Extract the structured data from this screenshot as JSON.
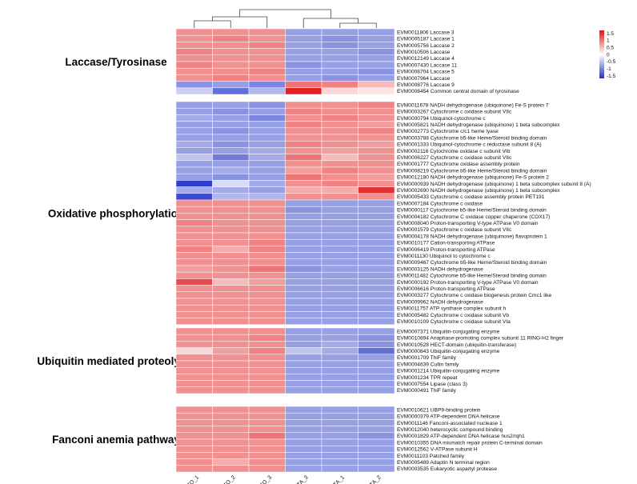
{
  "chart_data": {
    "type": "heatmap",
    "columns": [
      "TO_1",
      "TO_2",
      "TO_3",
      "TA_3",
      "TA_1",
      "TA_2"
    ],
    "colormap": {
      "low": "#2233c8",
      "mid": "#ffffff",
      "high": "#e01414"
    },
    "legend": {
      "ticks": [
        "1.5",
        "1",
        "0.5",
        "0",
        "-0.5",
        "-1",
        "-1.5"
      ],
      "range": [
        -1.7,
        1.7
      ]
    },
    "groups": [
      {
        "name": "Laccase/Tyrosinase",
        "rows": [
          {
            "label": "EVM0011806 Laccase 3",
            "values": [
              0.8,
              0.8,
              0.8,
              -0.8,
              -0.8,
              -0.8
            ]
          },
          {
            "label": "EVM0005187 Laccase 1",
            "values": [
              0.8,
              0.9,
              0.8,
              -0.8,
              -0.9,
              -0.8
            ]
          },
          {
            "label": "EVM0005756 Laccase 2",
            "values": [
              0.8,
              0.8,
              0.9,
              -0.8,
              -0.9,
              -0.8
            ]
          },
          {
            "label": "EVM0010506 Laccase",
            "values": [
              0.9,
              0.8,
              0.8,
              -0.8,
              -0.8,
              -0.9
            ]
          },
          {
            "label": "EVM0012149 Laccase 4",
            "values": [
              0.8,
              0.8,
              0.8,
              -0.8,
              -0.8,
              -0.8
            ]
          },
          {
            "label": "EVM0007430 Laccase 11",
            "values": [
              0.9,
              0.8,
              0.8,
              -0.9,
              -0.8,
              -0.8
            ]
          },
          {
            "label": "EVM0008704 Laccase 5",
            "values": [
              0.8,
              0.8,
              0.9,
              -0.8,
              -0.8,
              -0.9
            ]
          },
          {
            "label": "EVM0007964 Laccase",
            "values": [
              0.8,
              0.9,
              0.8,
              -0.8,
              -0.9,
              -0.8
            ]
          },
          {
            "label": "EVM0008776 Laccase 9",
            "values": [
              -0.9,
              -0.8,
              -1.0,
              1.0,
              0.9,
              0.5
            ]
          },
          {
            "label": "EVM0008454 Common central domain of tyrosinase",
            "values": [
              -0.4,
              -1.2,
              -0.6,
              1.6,
              0.3,
              0.2
            ]
          }
        ]
      },
      {
        "name": "Oxidative phosphorylation",
        "rows": [
          {
            "label": "EVM0011678 NADH dehydrogenase (ubiquinone) Fe-S protein 7",
            "values": [
              -0.8,
              -0.8,
              -0.9,
              0.8,
              0.8,
              0.9
            ]
          },
          {
            "label": "EVM0003267 Cytochrome c oxidase subunit VIIc",
            "values": [
              -0.8,
              -0.9,
              -0.8,
              0.9,
              0.8,
              0.8
            ]
          },
          {
            "label": "EVM0000794 Ubiquinol-cytochrome c",
            "values": [
              -0.7,
              -0.8,
              -1.0,
              0.8,
              0.9,
              0.8
            ]
          },
          {
            "label": "EVM0005821 NADH dehydrogenase (ubiquinone) 1 beta subcomplex",
            "values": [
              -0.8,
              -0.8,
              -0.8,
              0.9,
              0.8,
              0.7
            ]
          },
          {
            "label": "EVM0002773 Cytochrome c/c1 heme lyase",
            "values": [
              -0.8,
              -0.9,
              -0.8,
              0.8,
              0.8,
              0.9
            ]
          },
          {
            "label": "EVM0003788 Cytochrome b5-like Heme/Steroid binding domain",
            "values": [
              -0.8,
              -0.8,
              -0.8,
              0.8,
              0.8,
              0.8
            ]
          },
          {
            "label": "EVM0001333 Ubiquinol-cytochrome c reductase subunit 8 (A)",
            "values": [
              -0.7,
              -0.9,
              -0.8,
              0.9,
              0.8,
              0.7
            ]
          },
          {
            "label": "EVM0002116 Cytochrome oxidase c subunit VIb",
            "values": [
              -0.8,
              -0.8,
              -0.7,
              0.8,
              0.7,
              0.8
            ]
          },
          {
            "label": "EVM0006227 Cytochrome c oxidase subunit VIIc",
            "values": [
              -0.5,
              -1.1,
              -0.7,
              1.0,
              0.5,
              0.8
            ]
          },
          {
            "label": "EVM0001777 Cytochrome oxidase assembly protein",
            "values": [
              -0.8,
              -0.8,
              -0.8,
              0.8,
              0.8,
              0.8
            ]
          },
          {
            "label": "EVM0008219 Cytochrome b5-like Heme/Steroid binding domain",
            "values": [
              -0.8,
              -0.7,
              -0.8,
              0.7,
              0.9,
              0.8
            ]
          },
          {
            "label": "EVM0012180 NADH dehydrogenase (ubiquinone) Fe-S protein 2",
            "values": [
              -0.8,
              -0.9,
              -0.8,
              1.0,
              0.8,
              0.7
            ]
          },
          {
            "label": "EVM0000939 NADH dehydrogenase (ubiquinone) 1 beta subcomplex subunit 8 (A)",
            "values": [
              -1.6,
              -0.3,
              -0.7,
              0.8,
              0.9,
              0.8
            ]
          },
          {
            "label": "EVM0002690 NADH dehydrogenase (ubiquinone) 1 beta subcomplex",
            "values": [
              -0.7,
              -0.7,
              -0.8,
              0.6,
              0.6,
              1.5
            ]
          },
          {
            "label": "EVM0005433 Cytochrome c oxidase assembly protein PET191",
            "values": [
              -1.5,
              -0.6,
              -0.6,
              0.8,
              0.8,
              0.8
            ]
          },
          {
            "label": "EVM0007184 Cytochrome c oxidase",
            "values": [
              0.8,
              0.8,
              0.8,
              -0.8,
              -0.8,
              -0.8
            ]
          },
          {
            "label": "EVM0000117 Cytochrome b5-like Heme/Steroid binding domain",
            "values": [
              0.8,
              0.8,
              0.8,
              -0.9,
              -0.8,
              -0.8
            ]
          },
          {
            "label": "EVM0004182 Cytochrome C oxidase copper chaperone (COX17)",
            "values": [
              0.8,
              0.8,
              0.8,
              -0.8,
              -0.8,
              -0.8
            ]
          },
          {
            "label": "EVM0008040 Proton-transporting V-type ATPase V0 domain",
            "values": [
              0.9,
              0.8,
              0.8,
              -0.8,
              -0.8,
              -0.8
            ]
          },
          {
            "label": "EVM0001579 Cytochrome c oxidase subunit VIIc",
            "values": [
              0.8,
              0.8,
              0.8,
              -0.8,
              -0.8,
              -0.8
            ]
          },
          {
            "label": "EVM0004178 NADH dehydrogenase (ubiquinone) flavoprotein 1",
            "values": [
              0.8,
              0.8,
              0.8,
              -0.8,
              -0.8,
              -0.8
            ]
          },
          {
            "label": "EVM0010177 Cation-transporting ATPase",
            "values": [
              0.8,
              0.8,
              0.9,
              -0.8,
              -0.8,
              -0.8
            ]
          },
          {
            "label": "EVM0006419 Proton-transporting ATPase",
            "values": [
              0.9,
              0.6,
              0.9,
              -0.8,
              -0.8,
              -0.8
            ]
          },
          {
            "label": "EVM0011130 Ubiquinol to cytochrome c",
            "values": [
              0.8,
              0.8,
              0.8,
              -0.8,
              -0.8,
              -0.8
            ]
          },
          {
            "label": "EVM0009467 Cytochrome b5-like Heme/Steroid binding domain",
            "values": [
              0.8,
              0.8,
              0.8,
              -0.8,
              -0.8,
              -0.8
            ]
          },
          {
            "label": "EVM0003125 NADH dehydrogenase",
            "values": [
              0.7,
              0.8,
              1.0,
              -0.9,
              -0.8,
              -0.8
            ]
          },
          {
            "label": "EVM0011482 Cytochrome b5-like Heme/Steroid binding domain",
            "values": [
              0.8,
              0.8,
              0.8,
              -0.8,
              -0.8,
              -0.8
            ]
          },
          {
            "label": "EVM0000192 Proton-transporting V-type ATPase V0 domain",
            "values": [
              1.3,
              0.5,
              0.7,
              -0.8,
              -0.8,
              -0.8
            ]
          },
          {
            "label": "EVM0006616 Proton-transporting ATPase",
            "values": [
              0.8,
              0.8,
              0.8,
              -0.8,
              -0.8,
              -0.8
            ]
          },
          {
            "label": "EVM0003277 Cytochrome c oxidase biogenesis protein Cmc1 like",
            "values": [
              0.8,
              0.8,
              0.8,
              -0.8,
              -0.8,
              -0.8
            ]
          },
          {
            "label": "EVM0009962 NADH dehydrogenase",
            "values": [
              0.8,
              0.8,
              0.8,
              -0.8,
              -0.8,
              -0.8
            ]
          },
          {
            "label": "EVM0011757 ATP synthase complex subunit h",
            "values": [
              0.8,
              0.8,
              0.8,
              -0.8,
              -0.8,
              -0.8
            ]
          },
          {
            "label": "EVM0005482 Cytochrome c oxidase subunit Vb",
            "values": [
              0.8,
              0.8,
              0.8,
              -0.8,
              -0.8,
              -0.8
            ]
          },
          {
            "label": "EVM0010109 Cytochrome c oxidase subunit VIa",
            "values": [
              0.8,
              0.8,
              0.8,
              -0.8,
              -0.8,
              -0.8
            ]
          }
        ]
      },
      {
        "name": "Ubiquitin mediated proteolysis",
        "rows": [
          {
            "label": "EVM0007371 Ubiquitin-conjugating enzyme",
            "values": [
              0.8,
              0.8,
              0.8,
              -0.8,
              -0.8,
              -0.8
            ]
          },
          {
            "label": "EVM0010894 Anaphase-promoting complex subunit 11 RING-H2 finger",
            "values": [
              0.8,
              0.8,
              0.9,
              -0.8,
              -0.8,
              -0.9
            ]
          },
          {
            "label": "EVM0010528 HECT-domain (ubiquitin-transferase)",
            "values": [
              0.8,
              0.8,
              0.8,
              -0.8,
              -0.7,
              -0.9
            ]
          },
          {
            "label": "EVM0000843 Ubiquitin-conjugating enzyme",
            "values": [
              0.3,
              0.7,
              0.9,
              -0.5,
              -0.7,
              -1.2
            ]
          },
          {
            "label": "EVM0001709 ThiF family",
            "values": [
              0.8,
              0.8,
              0.8,
              -0.8,
              -0.8,
              -0.8
            ]
          },
          {
            "label": "EVM0004639 Cullin family",
            "values": [
              0.8,
              0.8,
              0.8,
              -0.8,
              -0.8,
              -0.8
            ]
          },
          {
            "label": "EVM0001214 Ubiquitin-conjugating enzyme",
            "values": [
              0.8,
              0.8,
              0.8,
              -0.8,
              -0.8,
              -0.8
            ]
          },
          {
            "label": "EVM0001234 TPR repeat",
            "values": [
              0.8,
              0.8,
              0.8,
              -0.8,
              -0.8,
              -0.8
            ]
          },
          {
            "label": "EVM0007554 Lipase (class 3)",
            "values": [
              0.8,
              0.8,
              0.8,
              -0.8,
              -0.8,
              -0.8
            ]
          },
          {
            "label": "EVM0000491 ThiF family",
            "values": [
              0.8,
              0.8,
              0.8,
              -0.8,
              -0.8,
              -0.8
            ]
          }
        ]
      },
      {
        "name": "Fanconi anemia pathway",
        "rows": [
          {
            "label": "EVM0010621 UBP9-binding protein",
            "values": [
              0.8,
              0.8,
              0.8,
              -0.8,
              -0.8,
              -0.8
            ]
          },
          {
            "label": "EVM0000379 ATP-dependent DNA helicase",
            "values": [
              0.8,
              0.8,
              0.8,
              -0.8,
              -0.8,
              -0.8
            ]
          },
          {
            "label": "EVM0011146 Fanconi-associated nuclease 1",
            "values": [
              0.8,
              0.8,
              0.8,
              -0.8,
              -0.8,
              -0.8
            ]
          },
          {
            "label": "EVM0012040 heterocyclic compound binding",
            "values": [
              0.8,
              0.8,
              0.8,
              -0.8,
              -0.8,
              -0.8
            ]
          },
          {
            "label": "EVM0001829 ATP-dependent DNA helicase hus2/rqh1",
            "values": [
              0.8,
              0.8,
              1.0,
              -0.8,
              -0.8,
              -0.9
            ]
          },
          {
            "label": "EVM0010355 DNA mismatch repair protein C-terminal domain",
            "values": [
              0.8,
              0.8,
              0.8,
              -0.8,
              -0.8,
              -0.8
            ]
          },
          {
            "label": "EVM0012562 V-ATPase subunit H",
            "values": [
              0.8,
              0.8,
              0.8,
              -0.8,
              -0.8,
              -0.8
            ]
          },
          {
            "label": "EVM0011103 Patched family",
            "values": [
              0.8,
              0.8,
              0.8,
              -0.8,
              -0.8,
              -0.8
            ]
          },
          {
            "label": "EVM0005489 Adaptin N terminal region",
            "values": [
              0.8,
              0.6,
              0.8,
              -0.8,
              -0.8,
              -0.8
            ]
          },
          {
            "label": "EVM0003535 Eukaryotic aspartyl protease",
            "values": [
              0.8,
              0.8,
              0.8,
              -0.8,
              -0.8,
              -0.8
            ]
          }
        ]
      }
    ]
  }
}
